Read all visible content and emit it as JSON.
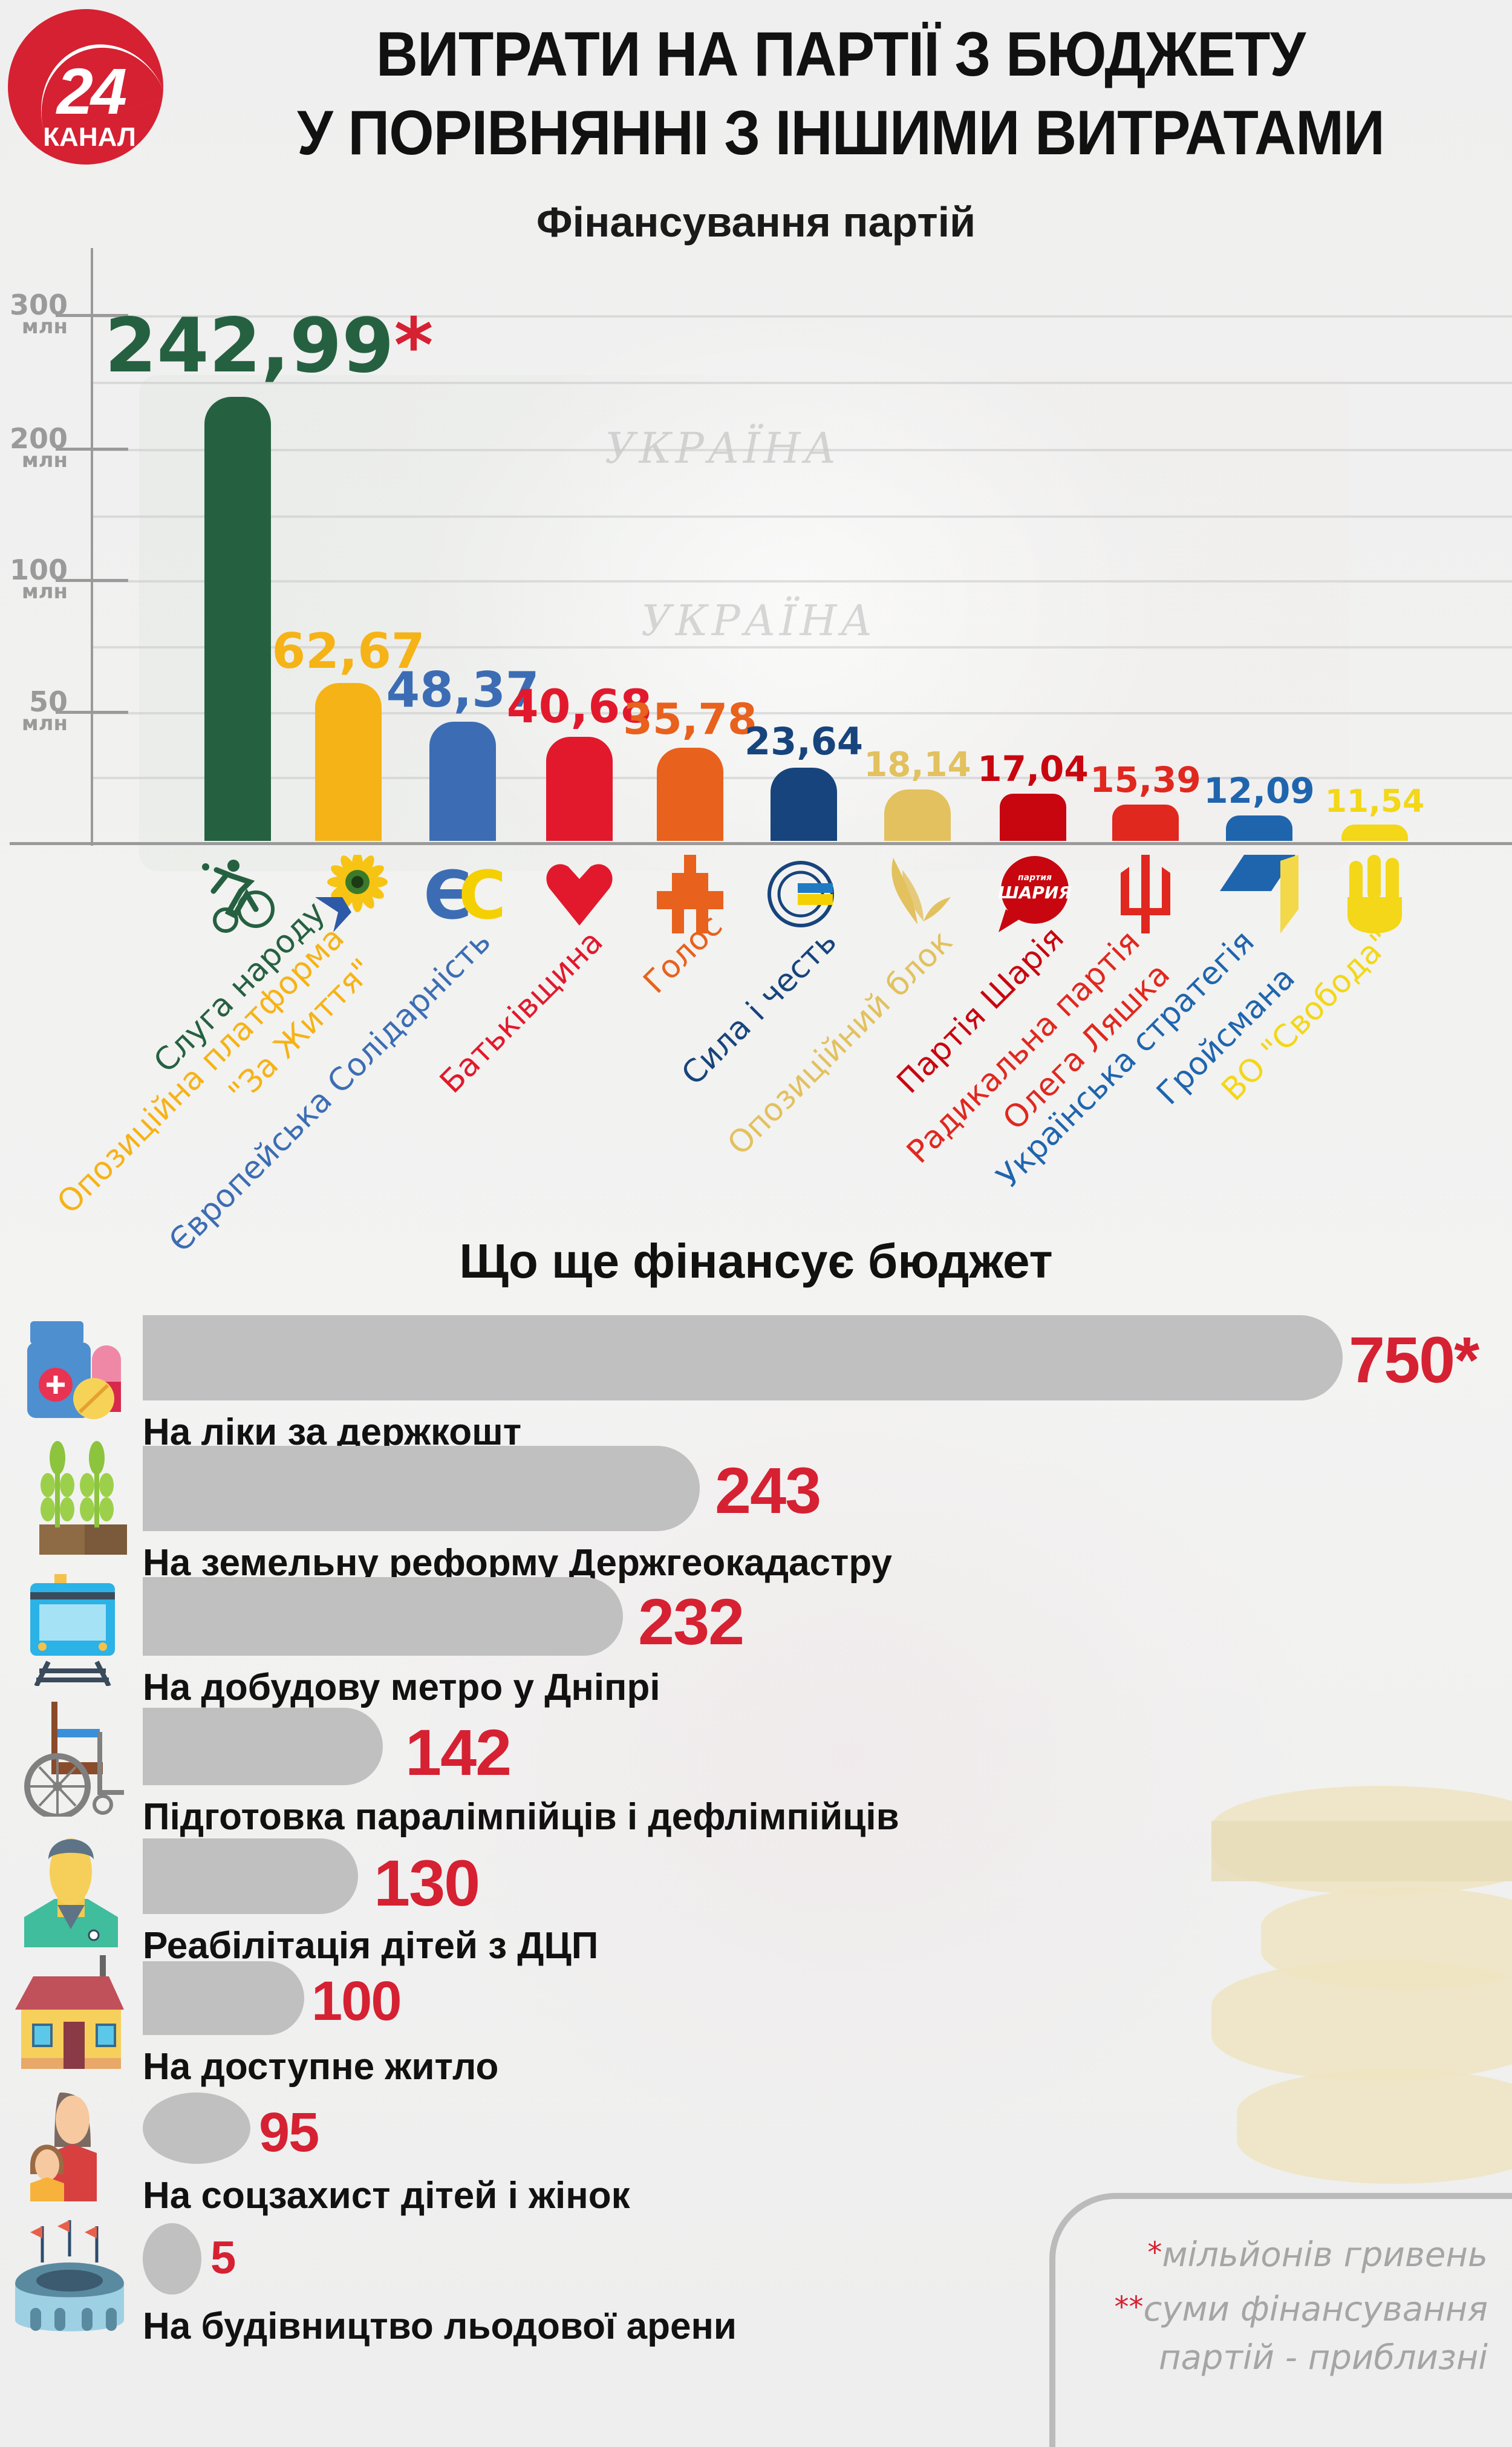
{
  "header": {
    "logo": {
      "number": "24",
      "subtitle": "КАНАЛ",
      "color": "#d52132"
    },
    "title_line1": "ВИТРАТИ НА ПАРТІЇ З БЮДЖЕТУ",
    "title_line2": "У ПОРІВНЯННІ З ІНШИМИ ВИТРАТАМИ"
  },
  "party_chart": {
    "title": "Фінансування партій",
    "y_ticks": [
      {
        "num": "300",
        "unit": "млн"
      },
      {
        "num": "200",
        "unit": "млн"
      },
      {
        "num": "100",
        "unit": "млн"
      },
      {
        "num": "50",
        "unit": "млн"
      }
    ],
    "bars": [
      {
        "party": "Слуга народу",
        "value": "242,99",
        "star": "*",
        "color": "#256141",
        "icon": "cyclist-icon"
      },
      {
        "party": "Опозиційна платформа",
        "party_line2": "\"За Життя\"",
        "value": "62,67",
        "color": "#f6b317",
        "icon": "sunflower-dove-icon"
      },
      {
        "party": "Європейська Солідарність",
        "value": "48,37",
        "color": "#3c6db4",
        "icon": "ec-logo-icon"
      },
      {
        "party": "Батьківщина",
        "value": "40,68",
        "color": "#e2192c",
        "icon": "heart-icon"
      },
      {
        "party": "Голос",
        "value": "35,78",
        "color": "#e8611d",
        "icon": "golos-logo-icon"
      },
      {
        "party": "Сила і честь",
        "value": "23,64",
        "color": "#17447c",
        "icon": "sila-i-chest-logo-icon"
      },
      {
        "party": "Опозиційний блок",
        "value": "18,14",
        "color": "#e2c15e",
        "icon": "bird-wing-icon"
      },
      {
        "party": "Партія Шарія",
        "value": "17,04",
        "color": "#c8060f",
        "icon": "speech-bubble-icon",
        "icon_text_small": "партия",
        "icon_text": "ШАРИЯ"
      },
      {
        "party": "Радикальна партія",
        "party_line2": "Олега Ляшка",
        "value": "15,39",
        "color": "#e0281f",
        "icon": "trident-icon"
      },
      {
        "party": "Українська стратегія",
        "party_line2": "Гройсмана",
        "value": "12,09",
        "color": "#1f65ae",
        "icon": "cube-icon"
      },
      {
        "party": "ВО \"Свобода\"",
        "value": "11,54",
        "color": "#f3d718",
        "icon": "three-fingers-icon"
      }
    ]
  },
  "budget_section": {
    "title": "Що ще фінансує бюджет",
    "items": [
      {
        "label": "На ліки за держкошт",
        "value": "750*",
        "icon": "medicine-icon"
      },
      {
        "label": "На земельну реформу Держгеокадастру",
        "value": "243",
        "icon": "sprouts-icon"
      },
      {
        "label": "На добудову метро у Дніпрі",
        "value": "232",
        "icon": "metro-train-icon"
      },
      {
        "label": "Підготовка паралімпійців і дефлімпійців",
        "value": "142",
        "icon": "wheelchair-icon"
      },
      {
        "label": "Реабілітація дітей з ДЦП",
        "value": "130",
        "icon": "doctor-icon"
      },
      {
        "label": "На доступне житло",
        "value": "100",
        "icon": "house-icon"
      },
      {
        "label": "На соцзахист дітей і жінок",
        "value": "95",
        "icon": "mother-child-icon"
      },
      {
        "label": "На будівництво льодової арени",
        "value": "5",
        "icon": "arena-icon"
      }
    ]
  },
  "footnotes": {
    "note1_star": "*",
    "note1": "мільйонів гривень",
    "note2_star": "**",
    "note2_line1": "суми фінансування",
    "note2_line2": "партій - приблизні"
  },
  "chart_data": [
    {
      "type": "bar",
      "title": "Фінансування партій",
      "xlabel": "",
      "ylabel": "млн грн",
      "ylim": [
        0,
        300
      ],
      "y_tick_labels": [
        "50 млн",
        "100 млн",
        "200 млн",
        "300 млн"
      ],
      "grid": true,
      "categories": [
        "Слуга народу",
        "Опозиційна платформа \"За Життя\"",
        "Європейська Солідарність",
        "Батьківщина",
        "Голос",
        "Сила і честь",
        "Опозиційний блок",
        "Партія Шарія",
        "Радикальна партія Олега Ляшка",
        "Українська стратегія Гройсмана",
        "ВО \"Свобода\""
      ],
      "values": [
        242.99,
        62.67,
        48.37,
        40.68,
        35.78,
        23.64,
        18.14,
        17.04,
        15.39,
        12.09,
        11.54
      ],
      "colors": [
        "#256141",
        "#f6b317",
        "#3c6db4",
        "#e2192c",
        "#e8611d",
        "#17447c",
        "#e2c15e",
        "#c8060f",
        "#e0281f",
        "#1f65ae",
        "#f3d718"
      ],
      "annotations": [
        "* мільйонів гривень",
        "** суми фінансування партій - приблизні"
      ]
    },
    {
      "type": "bar",
      "orientation": "horizontal",
      "title": "Що ще фінансує бюджет",
      "xlabel": "",
      "ylabel": "",
      "unit": "млн грн",
      "categories": [
        "На ліки за держкошт",
        "На земельну реформу Держгеокадастру",
        "На добудову метро у Дніпрі",
        "Підготовка паралімпійців і дефлімпійців",
        "Реабілітація дітей з ДЦП",
        "На доступне житло",
        "На соцзахист дітей і жінок",
        "На будівництво льодової арени"
      ],
      "values": [
        750,
        243,
        232,
        142,
        130,
        100,
        95,
        5
      ],
      "color": "#c0c0c0",
      "value_label_color": "#d52132"
    }
  ]
}
